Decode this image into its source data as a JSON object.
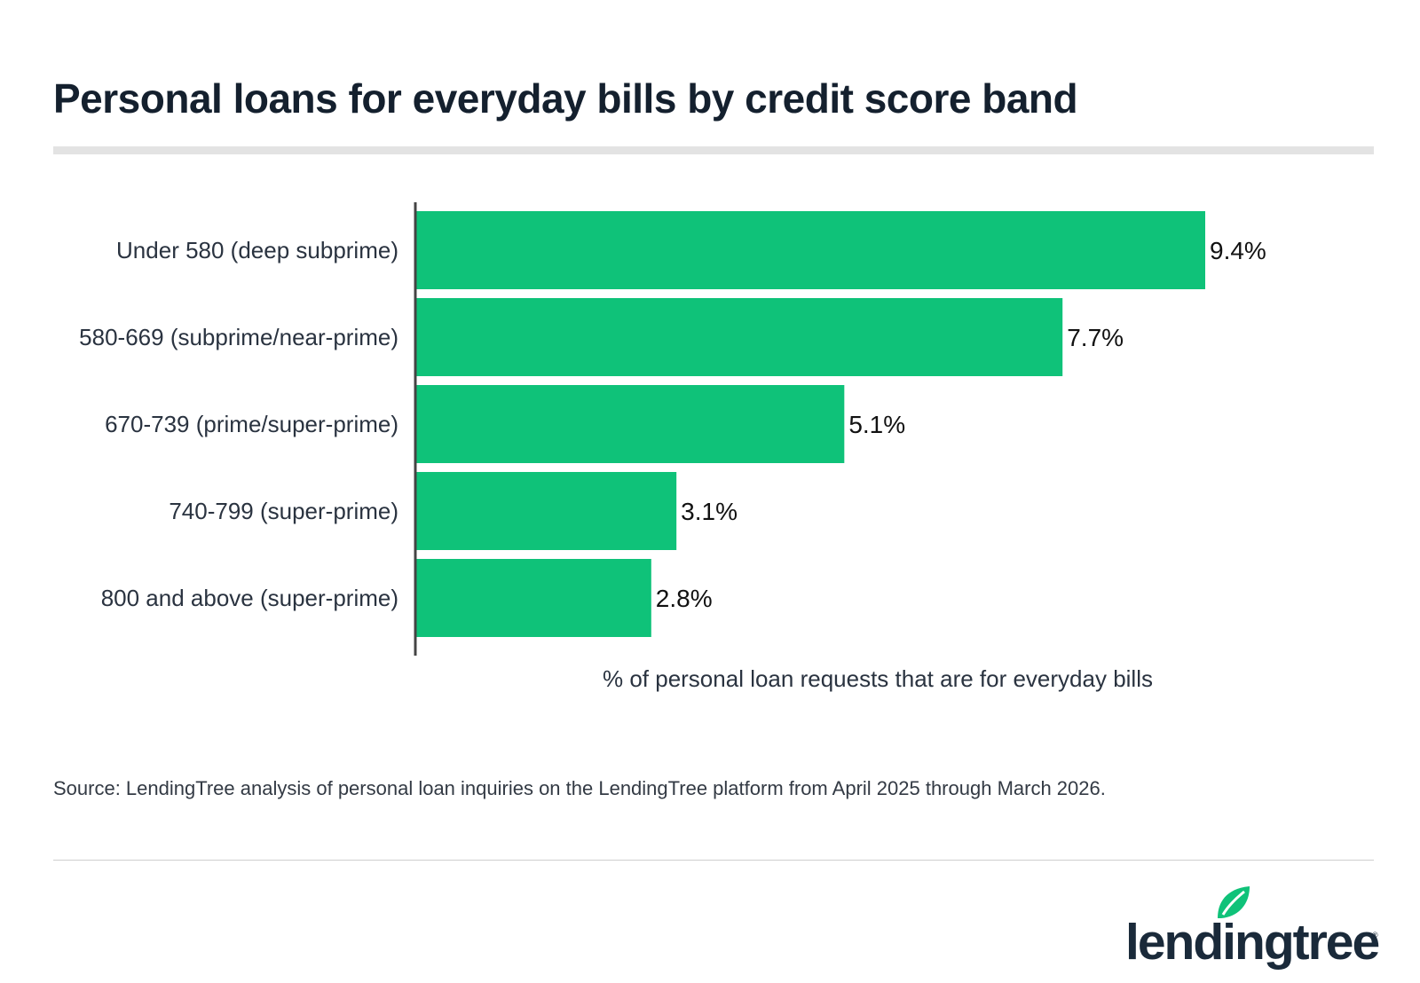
{
  "header": {
    "title": "Personal loans for everyday bills by credit score band"
  },
  "chart_data": {
    "type": "bar",
    "orientation": "horizontal",
    "categories": [
      "Under 580 (deep subprime)",
      "580-669 (subprime/near-prime)",
      "670-739 (prime/super-prime)",
      "740-799 (super-prime)",
      "800 and above (super-prime)"
    ],
    "values": [
      9.4,
      7.7,
      5.1,
      3.1,
      2.8
    ],
    "data_labels": [
      "9.4%",
      "7.7%",
      "5.1%",
      "3.1%",
      "2.8%"
    ],
    "xlabel": "% of personal loan requests that are for everyday bills",
    "xlim": [
      0,
      9.4
    ],
    "grid": false,
    "legend": "none",
    "bar_color": "#0fc279"
  },
  "footer": {
    "source": "Source: LendingTree analysis of personal loan inquiries on the LendingTree platform from April 2025 through March 2026.",
    "logo_text": "lendingtree",
    "logo_mark": "®",
    "logo_icon": "leaf-icon",
    "logo_color": "#1a2a3a",
    "leaf_color": "#0fc279"
  }
}
